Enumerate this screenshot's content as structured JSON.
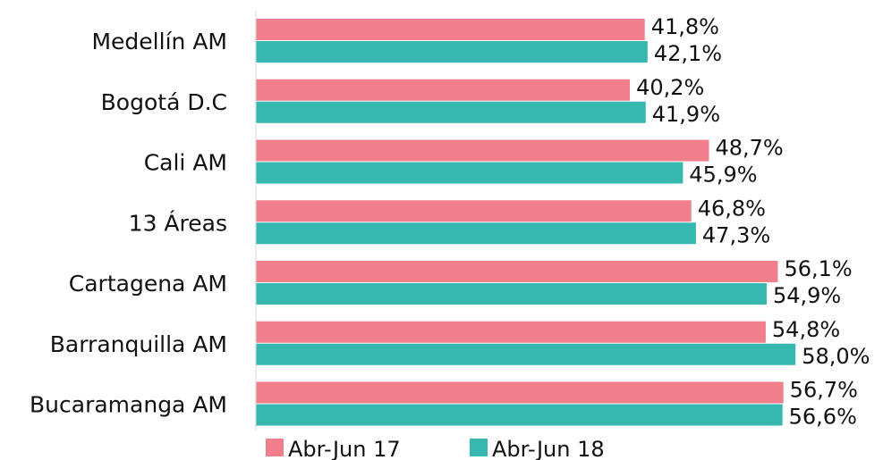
{
  "chart_data": {
    "type": "bar",
    "orientation": "horizontal",
    "categories": [
      "Medellín AM",
      "Bogotá D.C",
      "Cali AM",
      "13 Áreas",
      "Cartagena AM",
      "Barranquilla AM",
      "Bucaramanga AM"
    ],
    "series": [
      {
        "name": "Abr-Jun 17",
        "color": "#f07f8b",
        "values": [
          41.8,
          40.2,
          48.7,
          46.8,
          56.1,
          54.8,
          56.7
        ],
        "labels": [
          "41,8%",
          "40,2%",
          "48,7%",
          "46,8%",
          "56,1%",
          "54,8%",
          "56,7%"
        ]
      },
      {
        "name": "Abr-Jun 18",
        "color": "#36b8b0",
        "values": [
          42.1,
          41.9,
          45.9,
          47.3,
          54.9,
          58.0,
          56.6
        ],
        "labels": [
          "42,1%",
          "41,9%",
          "45,9%",
          "47,3%",
          "54,9%",
          "58,0%",
          "56,6%"
        ]
      }
    ],
    "title": "",
    "xlabel": "",
    "ylabel": "",
    "legend_position": "bottom",
    "grid": false
  }
}
